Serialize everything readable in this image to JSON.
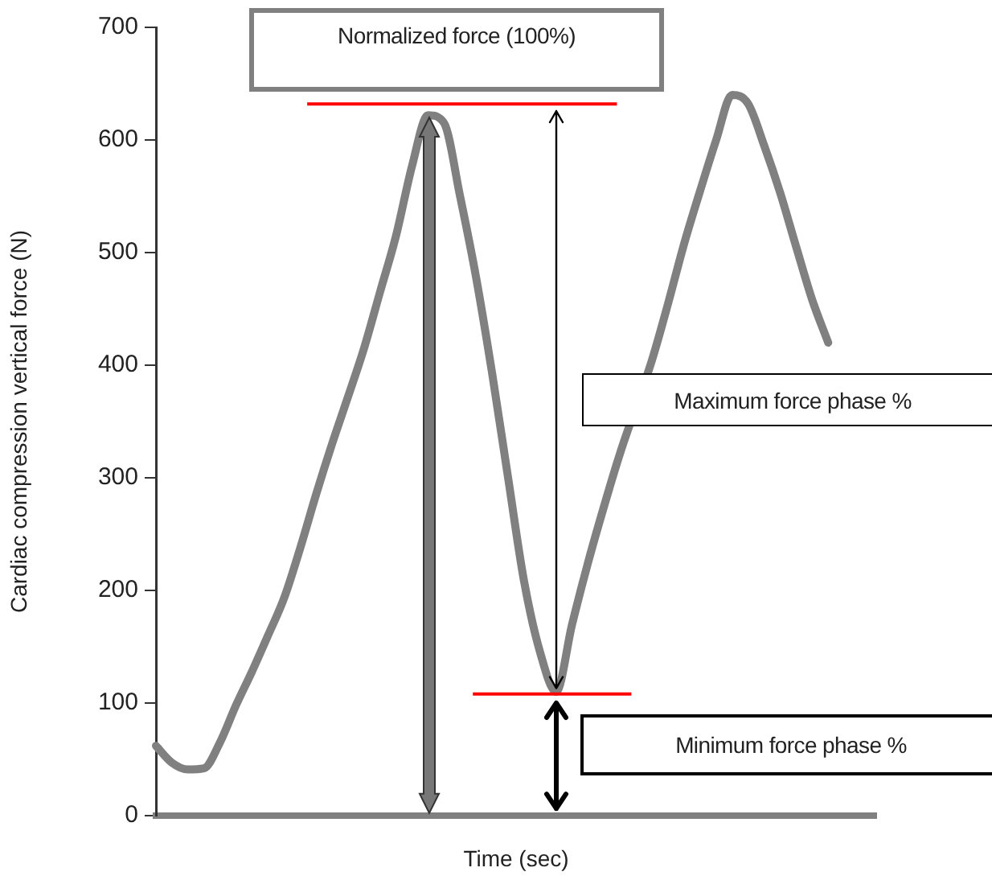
{
  "chart_data": {
    "type": "line",
    "xlabel": "Time (sec)",
    "ylabel": "Cardiac compression vertical force (N)",
    "categories": [
      null,
      null,
      null,
      null,
      null,
      null,
      null,
      null,
      null,
      null,
      null,
      null,
      null,
      null,
      null,
      null,
      null,
      null,
      null,
      null,
      null,
      null,
      null,
      null,
      null,
      null,
      null,
      null,
      null,
      null,
      null,
      null,
      null,
      null,
      null,
      null,
      null,
      null,
      null,
      null,
      null,
      null,
      null,
      null,
      null,
      null
    ],
    "series": [
      {
        "color": "#808080",
        "values": [
          62,
          47,
          41,
          42,
          65,
          98,
          128,
          160,
          193,
          237,
          285,
          330,
          372,
          415,
          465,
          515,
          577,
          622,
          615,
          550,
          478,
          393,
          300,
          208,
          145,
          110,
          170,
          225,
          275,
          322,
          null,
          405,
          455,
          508,
          555,
          600,
          640,
          632,
          595,
          553,
          505,
          458,
          420,
          null,
          null,
          null
        ]
      }
    ],
    "ylim": [
      0,
      700
    ],
    "yticks": [
      0,
      100,
      200,
      300,
      400,
      500,
      600,
      700
    ],
    "tick_labels": "y",
    "legend": false,
    "marker": "none",
    "line_style": "solid",
    "ref_lines": [
      {
        "axis": "y",
        "value": 632,
        "color": "#ff0000"
      },
      {
        "axis": "y",
        "value": 108,
        "color": "#ff0000"
      }
    ],
    "annotations": [
      "Normalized force (100%)",
      "Maximum force phase %",
      "Minimum force phase %"
    ]
  }
}
